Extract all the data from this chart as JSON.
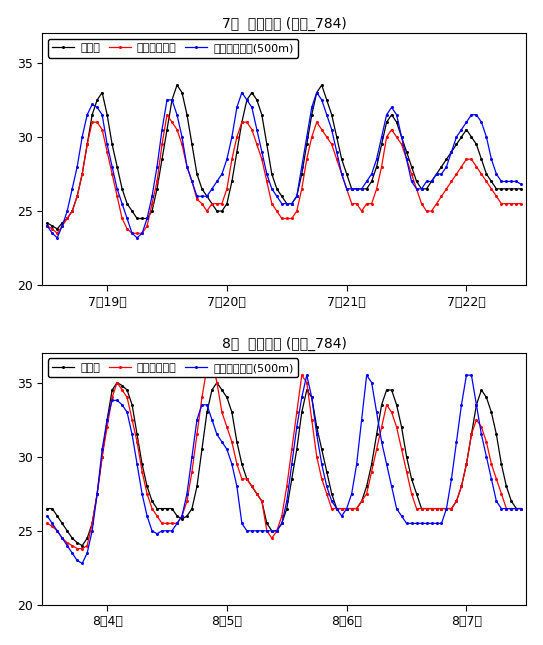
{
  "title1": "7월  폭염기간 (시종_784)",
  "title2": "8월  폭염기간 (시종_784)",
  "legend_obs": "관측값",
  "legend_nwp": "국지예보모델",
  "legend_det": "상세예측모델(500m)",
  "ylim": [
    20,
    37
  ],
  "yticks": [
    20,
    25,
    30,
    35
  ],
  "xticks1": [
    "7월19일",
    "7월20일",
    "7월21일",
    "7월22일"
  ],
  "xticks2": [
    "8월4일",
    "8월5일",
    "8월6일",
    "8월7일"
  ],
  "july_obs": [
    24.2,
    24.0,
    23.8,
    24.2,
    24.5,
    25.0,
    26.0,
    27.5,
    29.5,
    31.5,
    32.5,
    33.0,
    31.5,
    29.5,
    28.0,
    26.5,
    25.5,
    25.0,
    24.5,
    24.5,
    24.5,
    25.0,
    26.5,
    28.5,
    30.5,
    32.5,
    33.5,
    33.0,
    31.5,
    29.5,
    27.5,
    26.5,
    26.0,
    25.5,
    25.0,
    25.0,
    25.5,
    27.0,
    29.0,
    31.0,
    32.5,
    33.0,
    32.5,
    31.5,
    29.5,
    27.5,
    26.5,
    26.0,
    25.5,
    25.5,
    26.0,
    27.5,
    29.5,
    31.5,
    33.0,
    33.5,
    32.5,
    31.5,
    30.0,
    28.5,
    27.5,
    26.5,
    26.5,
    26.5,
    26.5,
    27.0,
    28.0,
    29.5,
    31.0,
    31.5,
    31.0,
    30.0,
    29.0,
    28.0,
    27.0,
    26.5,
    26.5,
    27.0,
    27.5,
    28.0,
    28.5,
    29.0,
    29.5,
    30.0,
    30.5,
    30.0,
    29.5,
    28.5,
    27.5,
    27.0,
    26.5,
    26.5,
    26.5,
    26.5,
    26.5,
    26.5
  ],
  "july_nwp": [
    24.0,
    23.8,
    23.5,
    24.0,
    24.5,
    25.0,
    26.0,
    27.5,
    29.5,
    31.0,
    31.0,
    30.5,
    29.0,
    27.5,
    26.0,
    24.5,
    23.8,
    23.5,
    23.5,
    23.5,
    24.0,
    25.5,
    27.0,
    29.5,
    31.5,
    31.0,
    30.5,
    29.5,
    28.0,
    27.0,
    25.8,
    25.5,
    25.0,
    25.5,
    25.5,
    25.5,
    26.5,
    28.5,
    30.0,
    31.0,
    31.0,
    30.5,
    29.5,
    28.5,
    27.0,
    25.5,
    25.0,
    24.5,
    24.5,
    24.5,
    25.0,
    26.5,
    28.5,
    30.0,
    31.0,
    30.5,
    30.0,
    29.5,
    28.5,
    27.5,
    26.5,
    25.5,
    25.5,
    25.0,
    25.5,
    25.5,
    26.5,
    28.0,
    30.0,
    30.5,
    30.0,
    29.5,
    28.5,
    27.5,
    26.5,
    25.5,
    25.0,
    25.0,
    25.5,
    26.0,
    26.5,
    27.0,
    27.5,
    28.0,
    28.5,
    28.5,
    28.0,
    27.5,
    27.0,
    26.5,
    26.0,
    25.5,
    25.5,
    25.5,
    25.5,
    25.5
  ],
  "july_det": [
    24.0,
    23.5,
    23.2,
    24.0,
    25.0,
    26.5,
    28.0,
    30.0,
    31.5,
    32.2,
    32.0,
    31.5,
    29.5,
    28.0,
    26.5,
    25.5,
    24.5,
    23.5,
    23.2,
    23.5,
    24.5,
    26.0,
    28.0,
    30.5,
    32.5,
    32.5,
    31.5,
    30.0,
    28.0,
    27.0,
    26.0,
    26.0,
    26.0,
    26.5,
    27.0,
    27.5,
    28.5,
    30.0,
    32.0,
    33.0,
    32.5,
    32.0,
    30.5,
    29.0,
    27.5,
    26.5,
    26.0,
    25.5,
    25.5,
    25.5,
    26.0,
    28.0,
    30.0,
    32.0,
    33.0,
    32.5,
    31.5,
    30.5,
    29.0,
    27.5,
    26.5,
    26.5,
    26.5,
    26.5,
    27.0,
    27.5,
    28.5,
    30.0,
    31.5,
    32.0,
    31.5,
    30.0,
    28.5,
    27.0,
    26.5,
    26.5,
    27.0,
    27.0,
    27.5,
    27.5,
    28.0,
    29.0,
    30.0,
    30.5,
    31.0,
    31.5,
    31.5,
    31.0,
    30.0,
    28.5,
    27.5,
    27.0,
    27.0,
    27.0,
    27.0,
    26.8
  ],
  "aug_obs": [
    26.5,
    26.5,
    26.0,
    25.5,
    25.0,
    24.5,
    24.2,
    24.0,
    24.5,
    25.5,
    27.5,
    30.0,
    32.5,
    34.5,
    35.0,
    34.8,
    34.5,
    33.5,
    31.5,
    29.5,
    28.0,
    27.0,
    26.5,
    26.5,
    26.5,
    26.5,
    26.0,
    25.8,
    26.0,
    26.5,
    28.0,
    30.5,
    33.0,
    34.5,
    35.0,
    34.5,
    34.0,
    33.0,
    31.0,
    29.5,
    28.5,
    28.0,
    27.5,
    27.0,
    25.5,
    25.0,
    25.0,
    25.5,
    26.5,
    28.5,
    30.5,
    33.0,
    34.5,
    34.0,
    32.0,
    30.5,
    29.0,
    27.5,
    26.5,
    26.5,
    26.5,
    26.5,
    26.5,
    27.0,
    28.0,
    29.5,
    31.5,
    33.5,
    34.5,
    34.5,
    33.5,
    32.0,
    30.0,
    28.5,
    27.5,
    26.5,
    26.5,
    26.5,
    26.5,
    26.5,
    26.5,
    26.5,
    27.0,
    28.0,
    29.5,
    31.5,
    33.5,
    34.5,
    34.0,
    33.0,
    31.5,
    29.5,
    28.0,
    27.0,
    26.5,
    26.5
  ],
  "aug_nwp": [
    25.5,
    25.3,
    25.0,
    24.5,
    24.2,
    24.0,
    23.8,
    23.8,
    24.0,
    25.5,
    27.5,
    30.0,
    32.0,
    34.0,
    35.0,
    34.5,
    34.0,
    32.5,
    31.0,
    29.0,
    27.5,
    26.5,
    26.0,
    25.5,
    25.5,
    25.5,
    25.5,
    26.0,
    27.0,
    29.0,
    31.5,
    34.0,
    36.0,
    36.5,
    35.0,
    33.0,
    32.0,
    31.0,
    29.5,
    28.5,
    28.5,
    28.0,
    27.5,
    27.0,
    25.0,
    24.5,
    25.0,
    26.0,
    28.0,
    30.5,
    33.0,
    35.5,
    35.0,
    32.5,
    30.0,
    28.5,
    27.5,
    26.5,
    26.5,
    26.5,
    26.5,
    26.5,
    26.5,
    27.0,
    27.5,
    29.0,
    30.5,
    32.0,
    33.5,
    33.0,
    32.0,
    30.5,
    29.0,
    27.5,
    26.5,
    26.5,
    26.5,
    26.5,
    26.5,
    26.5,
    26.5,
    26.5,
    27.0,
    28.0,
    29.5,
    31.5,
    32.5,
    32.0,
    31.0,
    29.5,
    28.5,
    27.5,
    26.5,
    26.5,
    26.5,
    26.5
  ],
  "aug_det": [
    26.0,
    25.5,
    25.0,
    24.5,
    24.0,
    23.5,
    23.0,
    22.8,
    23.5,
    25.0,
    27.5,
    30.5,
    32.5,
    33.8,
    33.8,
    33.5,
    33.0,
    31.5,
    29.5,
    27.5,
    26.0,
    25.0,
    24.8,
    25.0,
    25.0,
    25.0,
    25.5,
    26.0,
    27.5,
    30.0,
    32.5,
    33.5,
    33.5,
    32.5,
    31.5,
    31.0,
    30.5,
    29.5,
    28.0,
    25.5,
    25.0,
    25.0,
    25.0,
    25.0,
    25.0,
    25.0,
    25.0,
    25.5,
    27.0,
    29.5,
    32.0,
    34.0,
    35.5,
    34.0,
    31.5,
    29.5,
    28.0,
    27.0,
    26.5,
    26.0,
    26.5,
    27.5,
    29.5,
    32.5,
    35.5,
    35.0,
    33.0,
    31.0,
    29.5,
    28.0,
    26.5,
    26.0,
    25.5,
    25.5,
    25.5,
    25.5,
    25.5,
    25.5,
    25.5,
    25.5,
    26.5,
    28.5,
    31.0,
    33.5,
    35.5,
    35.5,
    33.5,
    31.5,
    30.0,
    28.5,
    27.0,
    26.5,
    26.5,
    26.5,
    26.5,
    26.5
  ]
}
